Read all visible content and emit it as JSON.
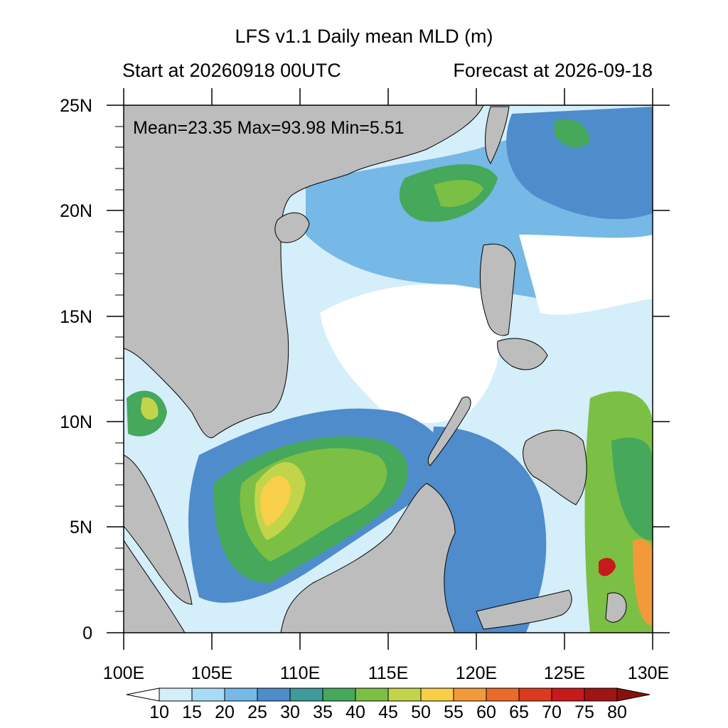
{
  "title": "LFS v1.1 Daily mean MLD (m)",
  "subtitle_left": "Start at 20260918 00UTC",
  "subtitle_right": "Forecast at 2026-09-18",
  "stats": "Mean=23.35  Max=93.98  Min=5.51",
  "lat_ticks": [
    "25N",
    "20N",
    "15N",
    "10N",
    "5N",
    "0"
  ],
  "lon_ticks": [
    "100E",
    "105E",
    "110E",
    "115E",
    "120E",
    "125E",
    "130E"
  ],
  "colorbar": {
    "labels": [
      "10",
      "15",
      "20",
      "25",
      "30",
      "35",
      "40",
      "45",
      "50",
      "55",
      "60",
      "65",
      "70",
      "75",
      "80"
    ],
    "colors": [
      "#ffffff",
      "#d4eefa",
      "#a8dcf5",
      "#76b8e6",
      "#4e8ccc",
      "#3f9a9a",
      "#45a85a",
      "#7cbf45",
      "#c2d54a",
      "#f7cf48",
      "#f29a3a",
      "#ea6a2a",
      "#dc3a1e",
      "#c81a1a",
      "#a01414",
      "#8a1010"
    ]
  },
  "map_colors": {
    "land": "#bdbdbd",
    "ocean_low": "#ffffff"
  }
}
